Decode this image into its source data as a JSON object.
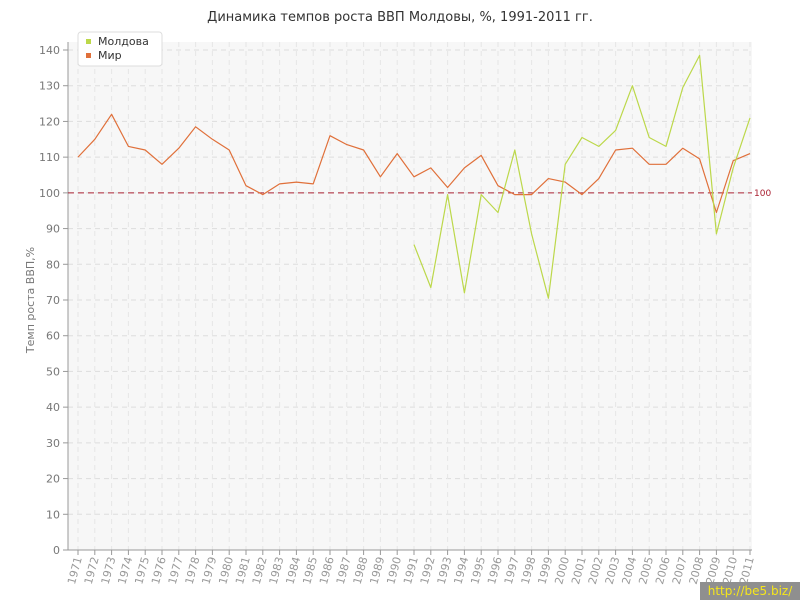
{
  "chart_data": {
    "type": "line",
    "title": "Динамика темпов роста ВВП Молдовы, %, 1991-2011 гг.",
    "ylabel": "Темп роста ВВП,%",
    "xlabel": "",
    "ylim": [
      0,
      140
    ],
    "yticks": [
      "0",
      "10",
      "20",
      "30",
      "40",
      "50",
      "60",
      "70",
      "80",
      "90",
      "100",
      "110",
      "120",
      "130",
      "140"
    ],
    "x": [
      "1971",
      "1972",
      "1973",
      "1974",
      "1975",
      "1976",
      "1977",
      "1978",
      "1979",
      "1980",
      "1981",
      "1982",
      "1983",
      "1984",
      "1985",
      "1986",
      "1987",
      "1988",
      "1989",
      "1990",
      "1991",
      "1992",
      "1993",
      "1994",
      "1995",
      "1996",
      "1997",
      "1998",
      "1999",
      "2000",
      "2001",
      "2002",
      "2003",
      "2004",
      "2005",
      "2006",
      "2007",
      "2008",
      "2009",
      "2010",
      "2011"
    ],
    "grid": true,
    "legend_position": "top-left",
    "reference_line": {
      "value": 100,
      "label": "100",
      "color": "#aa2233"
    },
    "series": [
      {
        "name": "Молдова",
        "color": "#bcd84a",
        "values": [
          null,
          null,
          null,
          null,
          null,
          null,
          null,
          null,
          null,
          null,
          null,
          null,
          null,
          null,
          null,
          null,
          null,
          null,
          null,
          null,
          85.5,
          73.5,
          99.5,
          72,
          99.5,
          94.5,
          112,
          88.5,
          70.5,
          108,
          115.5,
          113,
          117.5,
          130,
          115.5,
          113,
          129.5,
          138.5,
          88.5,
          107,
          121
        ]
      },
      {
        "name": "Мир",
        "color": "#e0703a",
        "values": [
          110,
          115,
          122,
          113,
          112,
          108,
          112.5,
          118.5,
          115,
          112,
          102,
          99.5,
          102.5,
          103,
          102.5,
          116,
          113.5,
          112,
          104.5,
          111,
          104.5,
          107,
          101.5,
          107,
          110.5,
          102,
          99.5,
          99.5,
          104,
          103,
          99.5,
          104,
          112,
          112.5,
          108,
          108,
          112.5,
          109.5,
          94.5,
          109,
          111
        ]
      }
    ]
  },
  "watermark": "http://be5.biz/"
}
